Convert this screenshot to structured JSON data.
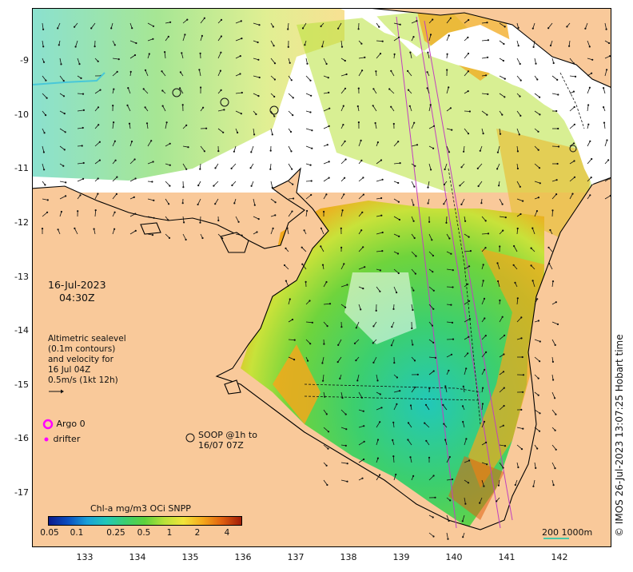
{
  "date": "16-Jul-2023",
  "time": "04:30Z",
  "velocity_note": {
    "line1": "Altimetric sealevel",
    "line2": "(0.1m contours)",
    "line3": "and velocity for",
    "line4": "16 Jul 04Z",
    "line5": "0.5m/s (1kt 12h)"
  },
  "legend": {
    "argo": "Argo 0",
    "drifter": "drifter",
    "argo_color": "#ff00ff",
    "drifter_color": "#ff00ff"
  },
  "soop": {
    "line1": "SOOP @1h to",
    "line2": "16/07 07Z"
  },
  "colorbar": {
    "title": "Chl-a mg/m3 OCi SNPP",
    "ticks": [
      "0.05",
      "0.1",
      "0.25",
      "0.5",
      "1",
      "2",
      "4"
    ],
    "tick_values": [
      0.05,
      0.1,
      0.25,
      0.5,
      1,
      2,
      4
    ]
  },
  "axes": {
    "longitudes": [
      "133",
      "134",
      "135",
      "136",
      "137",
      "138",
      "139",
      "140",
      "141",
      "142"
    ],
    "lon_values": [
      133,
      134,
      135,
      136,
      137,
      138,
      139,
      140,
      141,
      142
    ],
    "latitudes": [
      "-9",
      "-10",
      "-11",
      "-12",
      "-13",
      "-14",
      "-15",
      "-16",
      "-17"
    ],
    "lat_values": [
      -9,
      -10,
      -11,
      -12,
      -13,
      -14,
      -15,
      -16,
      -17
    ]
  },
  "scale": "200  1000m",
  "copyright": "© IMOS 26-Jul-2023 13:07:25 Hobart time",
  "colors": {
    "land": "#f9c99a",
    "no_data": "#ffffff",
    "coast": "#000000",
    "track": "#c040c0",
    "contour": "#48c8d8"
  }
}
